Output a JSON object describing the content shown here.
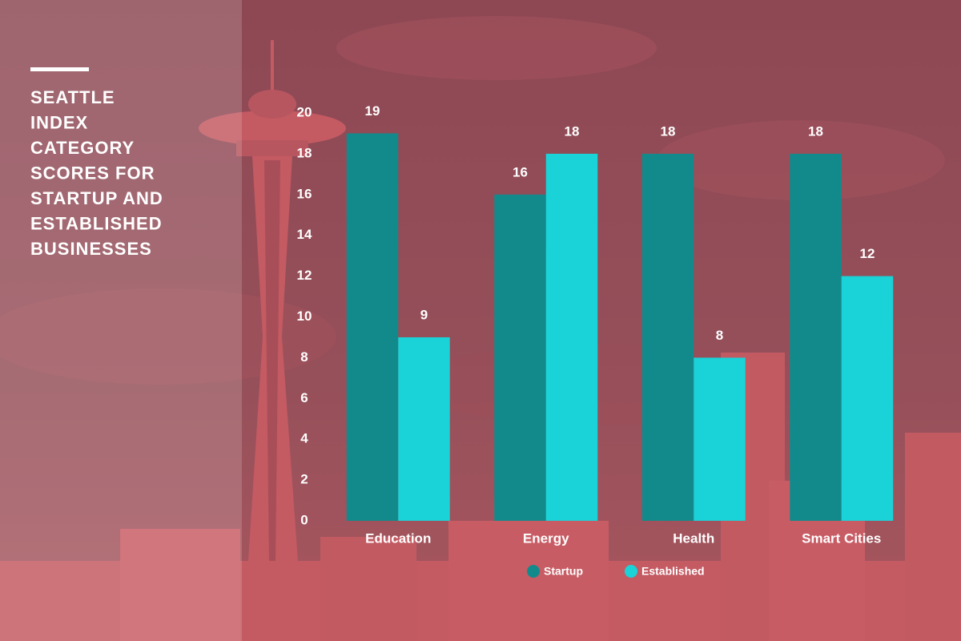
{
  "chart_data": {
    "type": "bar",
    "title": [
      "SEATTLE",
      "INDEX",
      "CATEGORY",
      "SCORES FOR",
      "STARTUP AND",
      "ESTABLISHED",
      "BUSINESSES"
    ],
    "categories": [
      "Education",
      "Energy",
      "Health",
      "Smart Cities"
    ],
    "series": [
      {
        "name": "Startup",
        "color": "#128a8c",
        "values": [
          19,
          16,
          18,
          18
        ]
      },
      {
        "name": "Established",
        "color": "#19d3d8",
        "values": [
          9,
          18,
          8,
          12
        ]
      }
    ],
    "ylim": [
      0,
      20
    ],
    "yticks": [
      0,
      2,
      4,
      6,
      8,
      10,
      12,
      14,
      16,
      18,
      20
    ]
  }
}
